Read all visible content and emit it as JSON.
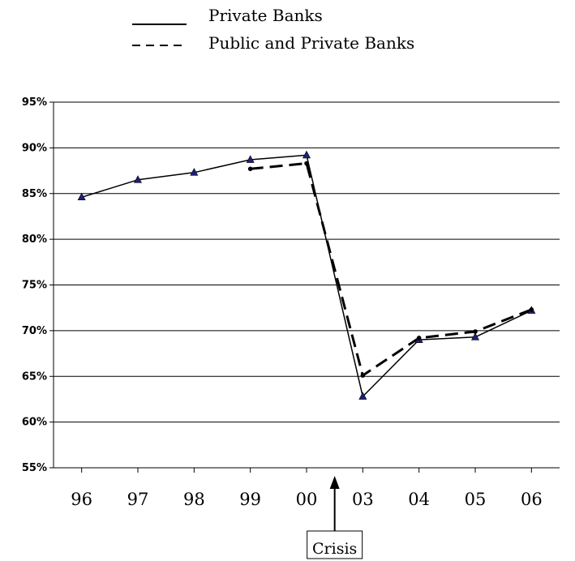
{
  "chart_data": {
    "type": "line",
    "categories": [
      "96",
      "97",
      "98",
      "99",
      "00",
      "03",
      "04",
      "05",
      "06"
    ],
    "series": [
      {
        "name": "Private Banks",
        "style": "solid",
        "marker": "triangle",
        "values": [
          84.6,
          86.5,
          87.3,
          88.7,
          89.2,
          62.8,
          69.0,
          69.3,
          72.2
        ]
      },
      {
        "name": "Public and Private Banks",
        "style": "dashed",
        "marker": "circle",
        "values": [
          null,
          null,
          null,
          87.7,
          88.3,
          65.1,
          69.2,
          69.9,
          72.3
        ]
      }
    ],
    "yticks": [
      "55%",
      "60%",
      "65%",
      "70%",
      "75%",
      "80%",
      "85%",
      "90%",
      "95%"
    ],
    "ylim": [
      55,
      95
    ],
    "ystep": 5,
    "grid": true,
    "legend_position": "top-center",
    "annotation": {
      "label": "Crisis",
      "between": [
        "00",
        "03"
      ]
    },
    "colors": {
      "line": "#000000",
      "marker_fill": "#1f1f7a",
      "grid": "#000000"
    }
  }
}
